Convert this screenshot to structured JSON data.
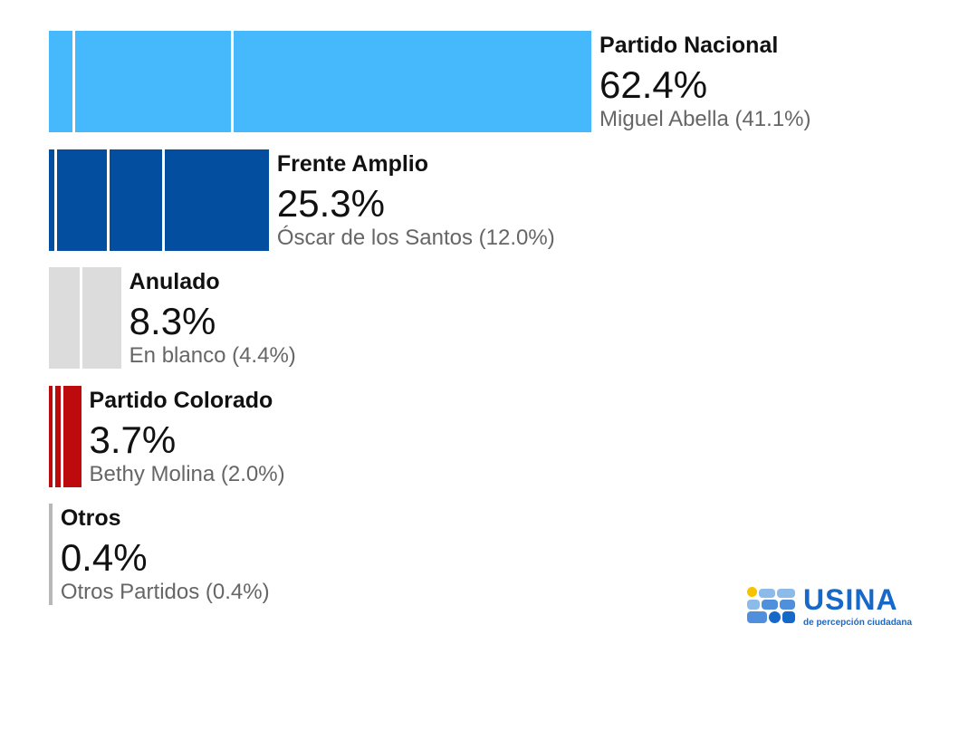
{
  "chart_data": {
    "type": "bar",
    "orientation": "horizontal",
    "categories": [
      "Partido Nacional",
      "Frente Amplio",
      "Anulado",
      "Partido Colorado",
      "Otros"
    ],
    "values": [
      62.4,
      25.3,
      8.3,
      3.7,
      0.4
    ],
    "value_labels": [
      "62.4%",
      "25.3%",
      "8.3%",
      "3.7%",
      "0.4%"
    ],
    "sublabels": [
      "Miguel Abella (41.1%)",
      "Óscar de los Santos (12.0%)",
      "En blanco (4.4%)",
      "Bethy Molina (2.0%)",
      "Otros Partidos (0.4%)"
    ],
    "segments": [
      [
        3.0,
        18.3,
        41.1
      ],
      [
        0.9,
        6.1,
        6.3,
        12.0
      ],
      [
        3.9,
        4.4
      ],
      [
        0.7,
        1.0,
        2.0
      ],
      [
        0.4
      ]
    ],
    "colors": [
      "#45b9fb",
      "#034e9f",
      "#dcdcdc",
      "#bd0a0d",
      "#b8b8b8"
    ],
    "xlim": [
      0,
      100
    ],
    "grid": false
  },
  "logo": {
    "name": "USINA",
    "tagline": "de percepción ciudadana",
    "colors": {
      "primary": "#1669c9",
      "light": "#8cbbea",
      "mid": "#4f8fdc",
      "yellow": "#f5c400"
    }
  }
}
